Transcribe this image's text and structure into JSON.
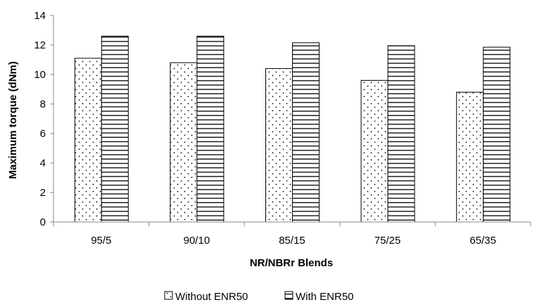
{
  "chart_data": {
    "type": "bar",
    "categories": [
      "95/5",
      "90/10",
      "85/15",
      "75/25",
      "65/35"
    ],
    "series": [
      {
        "name": "Without ENR50",
        "values": [
          11.1,
          10.8,
          10.4,
          9.6,
          8.8
        ],
        "pattern": "dots"
      },
      {
        "name": "With ENR50",
        "values": [
          12.6,
          12.6,
          12.15,
          11.95,
          11.85
        ],
        "pattern": "horizontal-lines"
      }
    ],
    "xlabel": "NR/NBRr Blends",
    "ylabel": "Maximum torque (dNm)",
    "ylim": [
      0,
      14
    ],
    "yticks": [
      "0",
      "2",
      "4",
      "6",
      "8",
      "10",
      "12",
      "14"
    ],
    "grid": false,
    "legend_position": "bottom-center",
    "colors": {
      "fill": "#ffffff",
      "stroke": "#000000",
      "axis": "#888888"
    }
  }
}
